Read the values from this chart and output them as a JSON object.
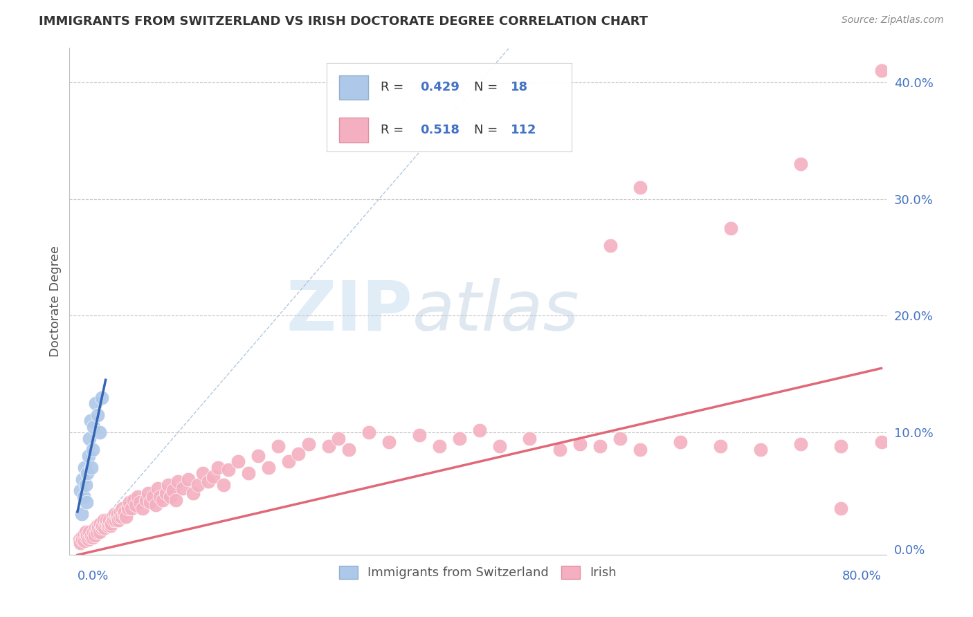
{
  "title": "IMMIGRANTS FROM SWITZERLAND VS IRISH DOCTORATE DEGREE CORRELATION CHART",
  "source": "Source: ZipAtlas.com",
  "ylabel": "Doctorate Degree",
  "ytick_labels": [
    "0.0%",
    "10.0%",
    "20.0%",
    "30.0%",
    "40.0%"
  ],
  "ytick_values": [
    0.0,
    0.1,
    0.2,
    0.3,
    0.4
  ],
  "xmin": 0.0,
  "xmax": 0.8,
  "ymin": 0.0,
  "ymax": 0.43,
  "legend_label1": "Immigrants from Switzerland",
  "legend_label2": "Irish",
  "color_blue": "#adc8e8",
  "color_blue_line": "#3464b4",
  "color_pink": "#f4b0c0",
  "color_pink_line": "#e06878",
  "color_diag_line": "#b0c8e0",
  "swiss_x": [
    0.003,
    0.004,
    0.005,
    0.006,
    0.007,
    0.008,
    0.009,
    0.01,
    0.011,
    0.012,
    0.013,
    0.014,
    0.015,
    0.016,
    0.018,
    0.02,
    0.022,
    0.024
  ],
  "swiss_y": [
    0.05,
    0.03,
    0.06,
    0.045,
    0.07,
    0.055,
    0.04,
    0.065,
    0.08,
    0.095,
    0.11,
    0.07,
    0.085,
    0.105,
    0.125,
    0.115,
    0.1,
    0.13
  ],
  "swiss_trendline_x": [
    0.0,
    0.028
  ],
  "swiss_trendline_y": [
    0.032,
    0.145
  ],
  "irish_trendline_x": [
    0.0,
    0.8
  ],
  "irish_trendline_y": [
    -0.005,
    0.155
  ],
  "diag_line_x": [
    0.0,
    0.43
  ],
  "diag_line_y": [
    0.0,
    0.43
  ],
  "irish_x_low": [
    0.002,
    0.003,
    0.004,
    0.005,
    0.006,
    0.007,
    0.008,
    0.009,
    0.01,
    0.011,
    0.012,
    0.013,
    0.014,
    0.015,
    0.016,
    0.017,
    0.018,
    0.019,
    0.02,
    0.021,
    0.022,
    0.023,
    0.024,
    0.025,
    0.026,
    0.027,
    0.028,
    0.029,
    0.03,
    0.031,
    0.032,
    0.033,
    0.034,
    0.035,
    0.036,
    0.037,
    0.038,
    0.039,
    0.04,
    0.041,
    0.042,
    0.043,
    0.044,
    0.045,
    0.046,
    0.047,
    0.048,
    0.05,
    0.052,
    0.054,
    0.056,
    0.058,
    0.06,
    0.062,
    0.065,
    0.068,
    0.07,
    0.072,
    0.075,
    0.078,
    0.08,
    0.082,
    0.085,
    0.088,
    0.09,
    0.092,
    0.095,
    0.098,
    0.1,
    0.105,
    0.11,
    0.115,
    0.12,
    0.125,
    0.13,
    0.135,
    0.14,
    0.145,
    0.15,
    0.16,
    0.17,
    0.18,
    0.19,
    0.2,
    0.21,
    0.22,
    0.23,
    0.25,
    0.26,
    0.27,
    0.29,
    0.31,
    0.34,
    0.36,
    0.38,
    0.4,
    0.42,
    0.45,
    0.48,
    0.5,
    0.52,
    0.54,
    0.56,
    0.6,
    0.64,
    0.68,
    0.72,
    0.76,
    0.8
  ],
  "irish_y_low": [
    0.008,
    0.005,
    0.01,
    0.008,
    0.012,
    0.007,
    0.015,
    0.01,
    0.012,
    0.008,
    0.015,
    0.01,
    0.012,
    0.01,
    0.015,
    0.012,
    0.018,
    0.015,
    0.02,
    0.018,
    0.015,
    0.022,
    0.018,
    0.02,
    0.025,
    0.018,
    0.022,
    0.025,
    0.02,
    0.022,
    0.025,
    0.02,
    0.022,
    0.028,
    0.025,
    0.03,
    0.025,
    0.028,
    0.03,
    0.025,
    0.028,
    0.032,
    0.028,
    0.035,
    0.03,
    0.032,
    0.028,
    0.035,
    0.04,
    0.035,
    0.042,
    0.038,
    0.045,
    0.04,
    0.035,
    0.042,
    0.048,
    0.04,
    0.045,
    0.038,
    0.052,
    0.045,
    0.042,
    0.048,
    0.055,
    0.045,
    0.05,
    0.042,
    0.058,
    0.052,
    0.06,
    0.048,
    0.055,
    0.065,
    0.058,
    0.062,
    0.07,
    0.055,
    0.068,
    0.075,
    0.065,
    0.08,
    0.07,
    0.088,
    0.075,
    0.082,
    0.09,
    0.088,
    0.095,
    0.085,
    0.1,
    0.092,
    0.098,
    0.088,
    0.095,
    0.102,
    0.088,
    0.095,
    0.085,
    0.09,
    0.088,
    0.095,
    0.085,
    0.092,
    0.088,
    0.085,
    0.09,
    0.088,
    0.092
  ],
  "irish_x_high": [
    0.53,
    0.56,
    0.65,
    0.72,
    0.76,
    0.8
  ],
  "irish_y_high": [
    0.26,
    0.31,
    0.275,
    0.33,
    0.035,
    0.41
  ]
}
